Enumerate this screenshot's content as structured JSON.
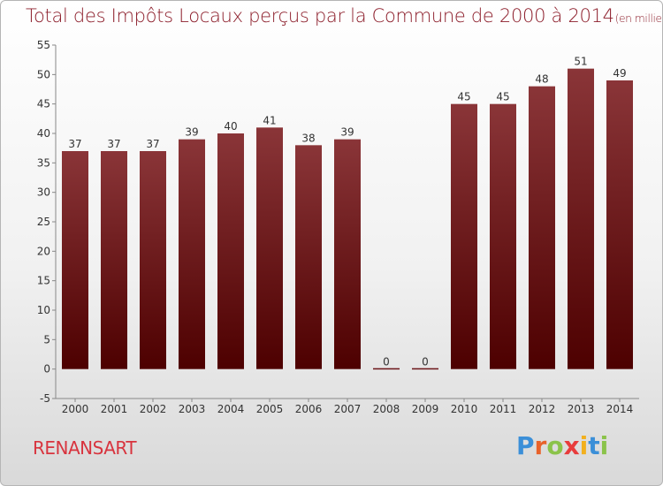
{
  "chart_data": {
    "type": "bar",
    "title": "Total des Impôts Locaux perçus par la Commune de 2000 à 2014",
    "subtitle": "(en milliers d'€)",
    "categories": [
      "2000",
      "2001",
      "2002",
      "2003",
      "2004",
      "2005",
      "2006",
      "2007",
      "2008",
      "2009",
      "2010",
      "2011",
      "2012",
      "2013",
      "2014"
    ],
    "values": [
      37,
      37,
      37,
      39,
      40,
      41,
      38,
      39,
      0,
      0,
      45,
      45,
      48,
      51,
      49
    ],
    "value_labels": [
      "37",
      "37",
      "37",
      "39",
      "40",
      "41",
      "38",
      "39",
      "0",
      "0",
      "45",
      "45",
      "48",
      "51",
      "49"
    ],
    "ylim": [
      -5,
      55
    ],
    "yticks": [
      "-5",
      "0",
      "5",
      "10",
      "15",
      "20",
      "25",
      "30",
      "35",
      "40",
      "45",
      "50",
      "55"
    ],
    "xlabel": "",
    "ylabel": "",
    "grid": false,
    "bar_color": "#6b1418"
  },
  "commune": "RENANSART",
  "logo": {
    "letters": [
      "P",
      "r",
      "o",
      "x",
      "i",
      "t",
      "i"
    ],
    "colors": [
      "#3b8fd8",
      "#e8622a",
      "#8bc34a",
      "#e83c3c",
      "#f2b01e",
      "#3b8fd8",
      "#8bc34a"
    ]
  }
}
